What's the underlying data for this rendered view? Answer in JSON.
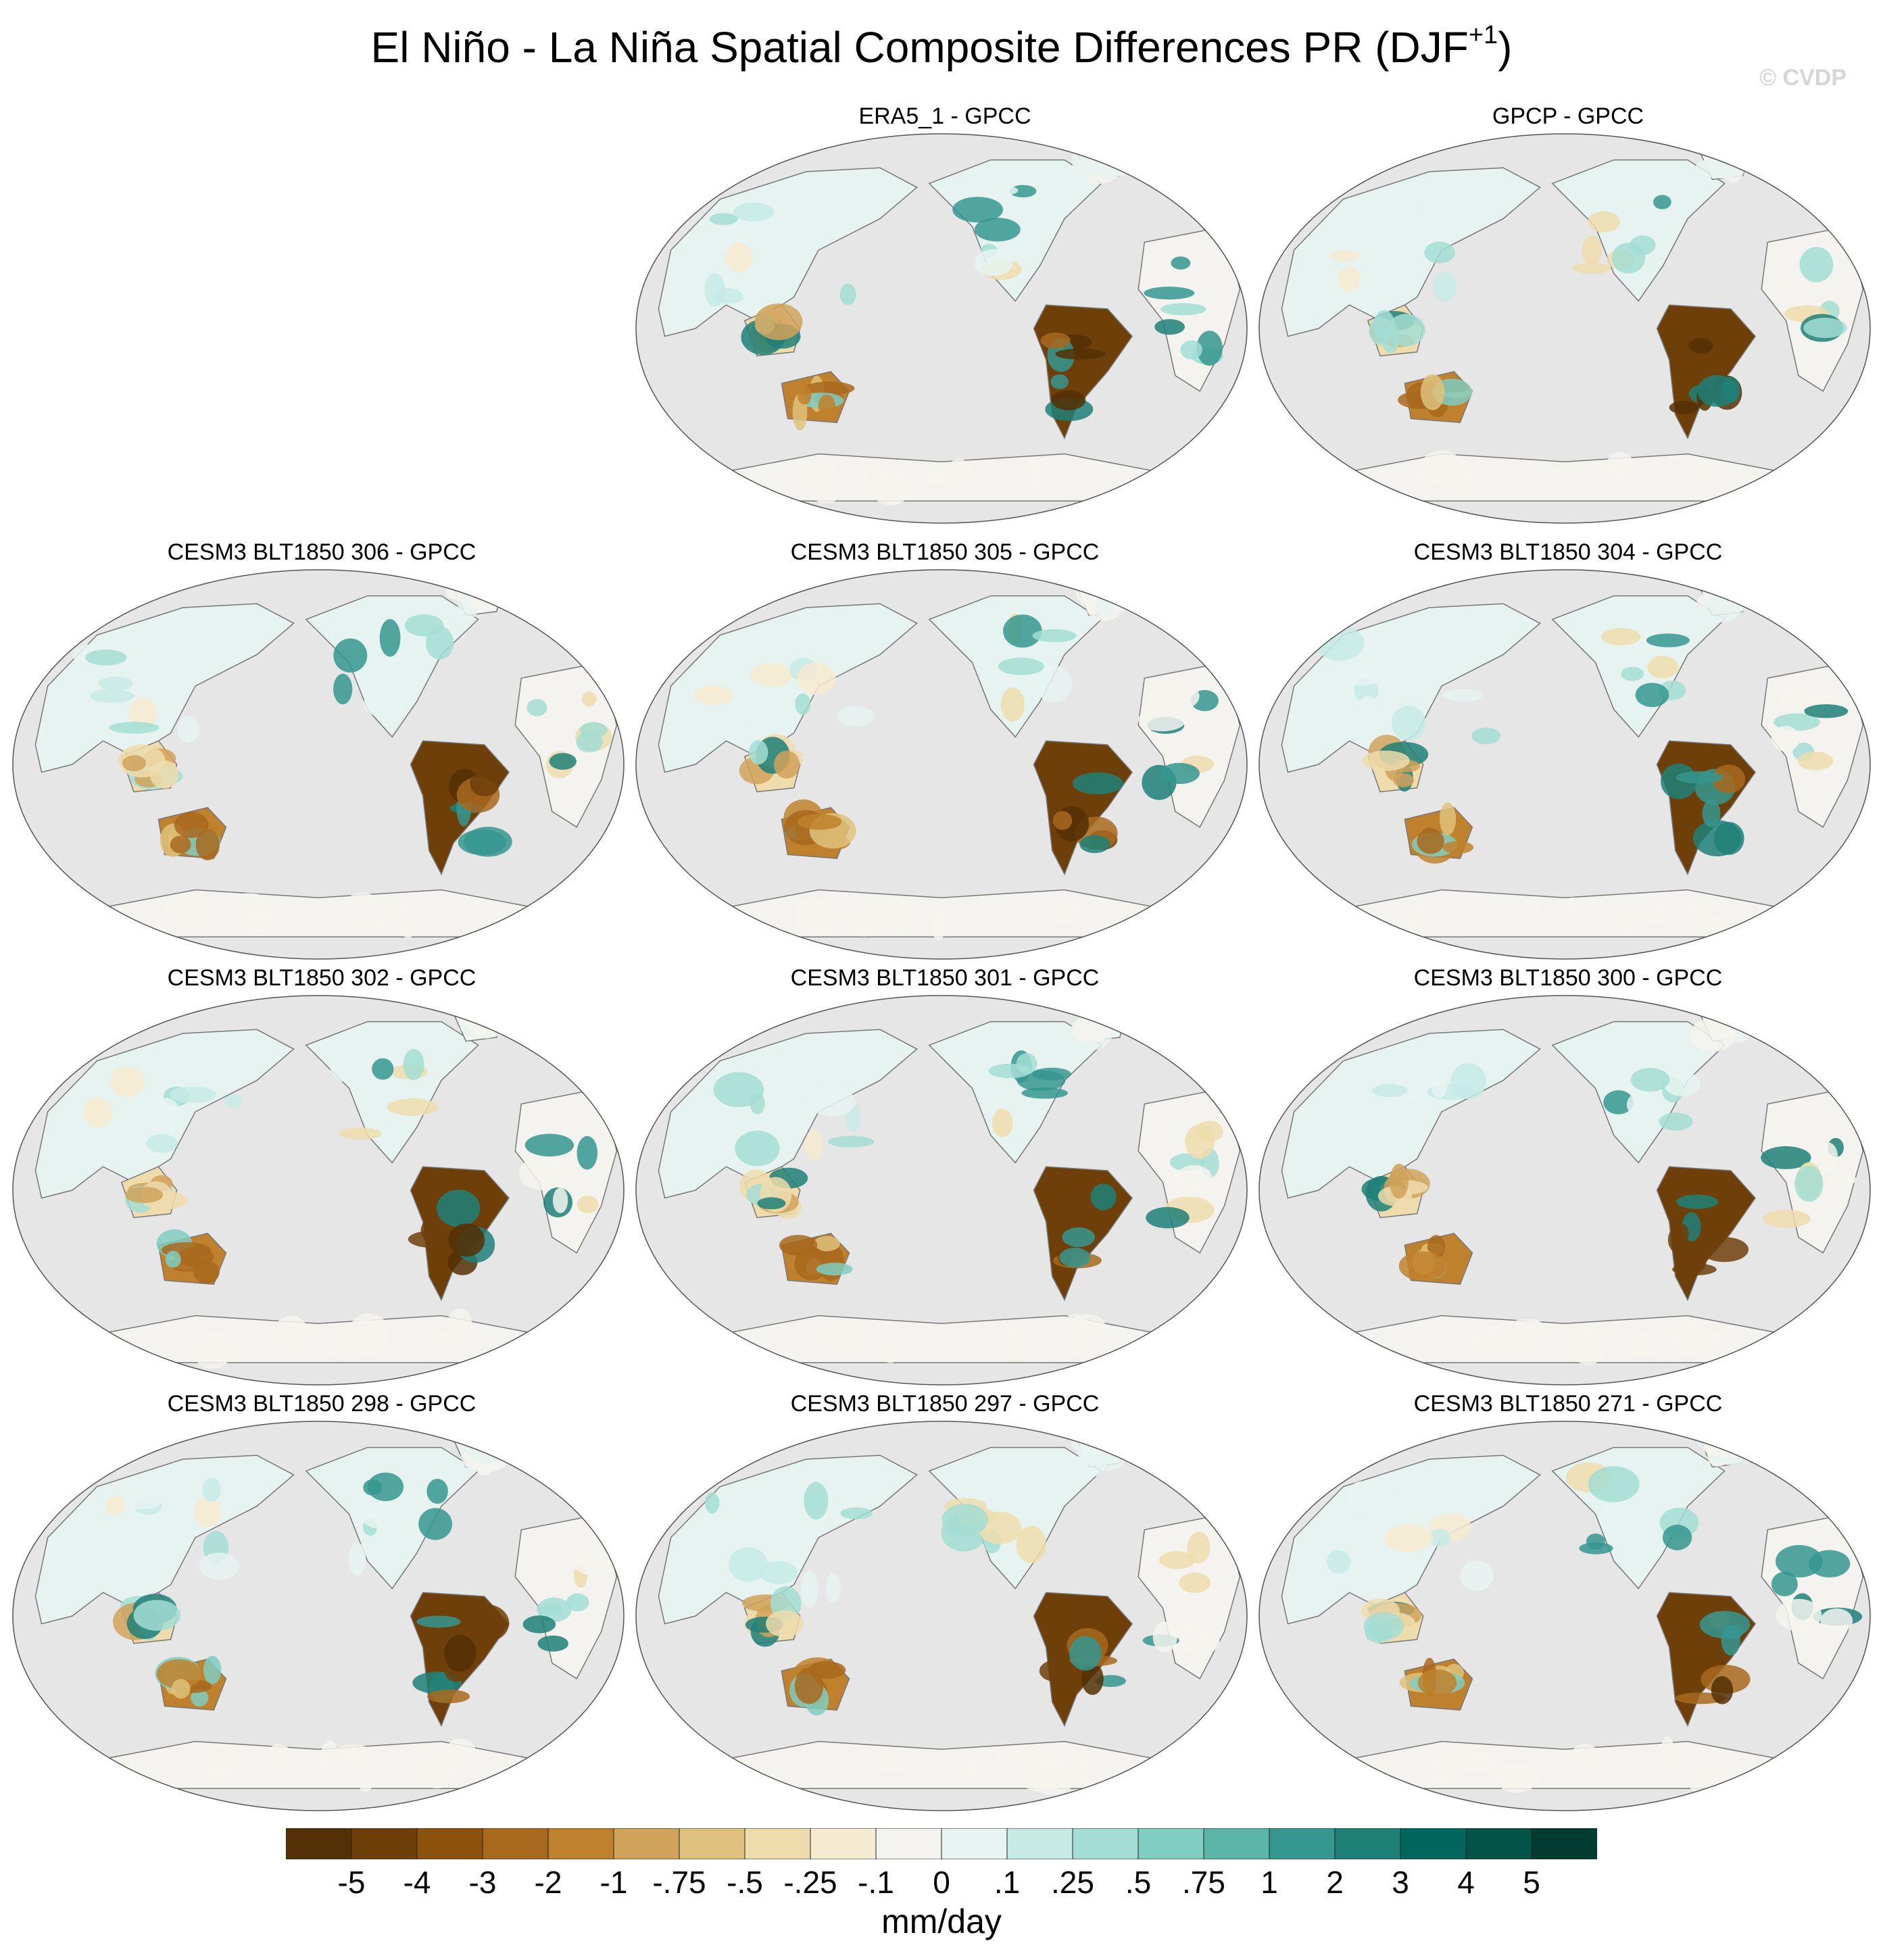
{
  "figure": {
    "title_main": "El Niño - La Niña Spatial Composite Differences PR (DJF",
    "title_sup": "+1",
    "title_close": ")",
    "watermark": "© CVDP",
    "ocean_color": "#e6e6e6",
    "coast_color": "#777777"
  },
  "panels": [
    {
      "title": "ERA5_1 - GPCC",
      "slot": 1
    },
    {
      "title": "GPCP - GPCC",
      "slot": 2
    },
    {
      "title": "CESM3 BLT1850 306 - GPCC",
      "slot": 3
    },
    {
      "title": "CESM3 BLT1850 305 - GPCC",
      "slot": 4
    },
    {
      "title": "CESM3 BLT1850 304 - GPCC",
      "slot": 5
    },
    {
      "title": "CESM3 BLT1850 302 - GPCC",
      "slot": 6
    },
    {
      "title": "CESM3 BLT1850 301 - GPCC",
      "slot": 7
    },
    {
      "title": "CESM3 BLT1850 300 - GPCC",
      "slot": 8
    },
    {
      "title": "CESM3 BLT1850 298 - GPCC",
      "slot": 9
    },
    {
      "title": "CESM3 BLT1850 297 - GPCC",
      "slot": 10
    },
    {
      "title": "CESM3 BLT1850 271 - GPCC",
      "slot": 11
    }
  ],
  "colorbar": {
    "units": "mm/day",
    "tick_labels": [
      "-5",
      "-4",
      "-3",
      "-2",
      "-1",
      "-.75",
      "-.5",
      "-.25",
      "-.1",
      "0",
      ".1",
      ".25",
      ".5",
      ".75",
      "1",
      "2",
      "3",
      "4",
      "5"
    ],
    "colors": [
      "#543005",
      "#6f3f0a",
      "#8c510a",
      "#a8691e",
      "#bf812d",
      "#d0a25a",
      "#dfc27d",
      "#eedcad",
      "#f6ead0",
      "#f5f3ef",
      "#e6f3f1",
      "#c7eae5",
      "#a3ddd4",
      "#80cdc1",
      "#5ab4a8",
      "#35978f",
      "#1f8078",
      "#01665e",
      "#015448",
      "#003c30"
    ]
  }
}
